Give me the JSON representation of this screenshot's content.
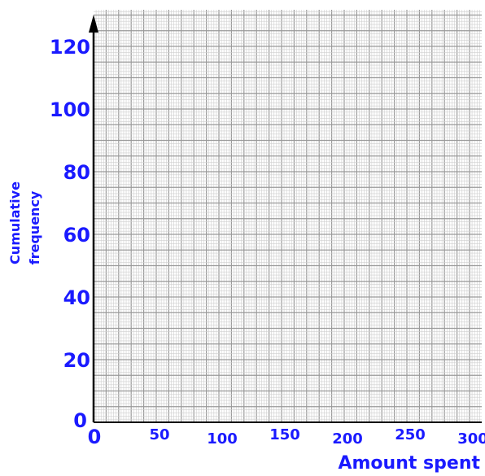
{
  "chart_data": {
    "type": "line",
    "title": "",
    "xlabel": "Amount spent",
    "ylabel_lines": [
      "Cumulative",
      "frequency"
    ],
    "xlim": [
      0,
      310
    ],
    "ylim": [
      0,
      130
    ],
    "x_ticks": [
      {
        "value": 0,
        "label": "0"
      },
      {
        "value": 50,
        "label": "50"
      },
      {
        "value": 100,
        "label": "100"
      },
      {
        "value": 150,
        "label": "150"
      },
      {
        "value": 200,
        "label": "200"
      },
      {
        "value": 250,
        "label": "250"
      },
      {
        "value": 300,
        "label": "300"
      }
    ],
    "y_ticks": [
      {
        "value": 0,
        "label": "0"
      },
      {
        "value": 20,
        "label": "20"
      },
      {
        "value": 40,
        "label": "40"
      },
      {
        "value": 60,
        "label": "60"
      },
      {
        "value": 80,
        "label": "80"
      },
      {
        "value": 100,
        "label": "100"
      },
      {
        "value": 120,
        "label": "120"
      }
    ],
    "grid": true,
    "series": [],
    "colors": {
      "text": "#1a1aff",
      "axis": "#000000",
      "grid_major": "#9a9a9a",
      "grid_minor": "#cfcfcf"
    }
  }
}
